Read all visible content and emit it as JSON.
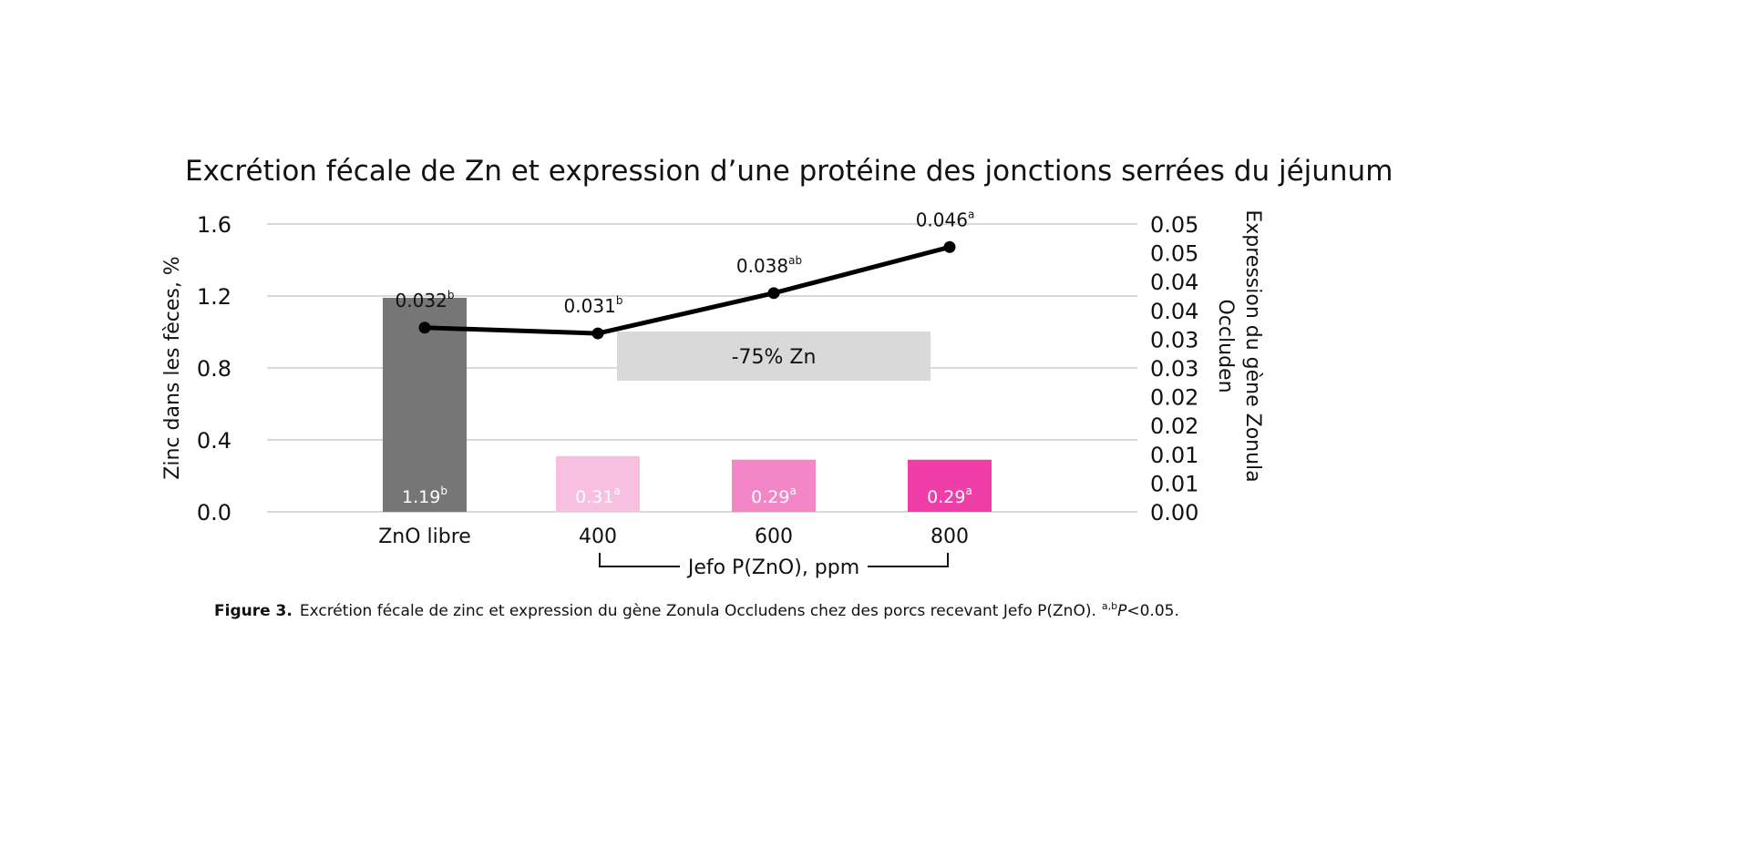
{
  "chart_data": {
    "type": "bar+line",
    "title": "Excrétion fécale de Zn et expression d’une protéine des jonctions serrées du jéjunum",
    "categories": [
      "ZnO libre",
      "400",
      "600",
      "800"
    ],
    "x_group_label": "Jefo P(ZnO), ppm",
    "y_left": {
      "label": "Zinc dans les fèces, %",
      "lim": [
        0,
        1.6
      ],
      "ticks": [
        "0.0",
        "0.4",
        "0.8",
        "1.2",
        "1.6"
      ]
    },
    "y_right": {
      "label_lines": [
        "Expression du gène Zonula",
        "Occluden"
      ],
      "lim": [
        0,
        0.05
      ],
      "ticks": [
        "0.00",
        "0.01",
        "0.01",
        "0.02",
        "0.02",
        "0.03",
        "0.03",
        "0.04",
        "0.04",
        "0.05",
        "0.05"
      ]
    },
    "bars": {
      "values": [
        1.19,
        0.31,
        0.29,
        0.29
      ],
      "labels": [
        "1.19",
        "0.31",
        "0.29",
        "0.29"
      ],
      "superscripts": [
        "b",
        "a",
        "a",
        "a"
      ],
      "colors": [
        "#767676",
        "#f7bfe0",
        "#f286c6",
        "#f03ea8"
      ]
    },
    "line": {
      "values": [
        0.032,
        0.031,
        0.038,
        0.046
      ],
      "labels": [
        "0.032",
        "0.031",
        "0.038",
        "0.046"
      ],
      "superscripts": [
        "b",
        "b",
        "ab",
        "a"
      ],
      "color": "#000000"
    },
    "annotation": {
      "text": "-75% Zn",
      "color": "#d9d9d9"
    },
    "grid": true
  },
  "caption": {
    "label": "Figure 3.",
    "text": "Excrétion fécale de zinc et expression du gène Zonula Occludens chez des porcs recevant Jefo P(ZnO).",
    "sup": "a,b",
    "p": "P",
    "rest": "<0.05."
  }
}
